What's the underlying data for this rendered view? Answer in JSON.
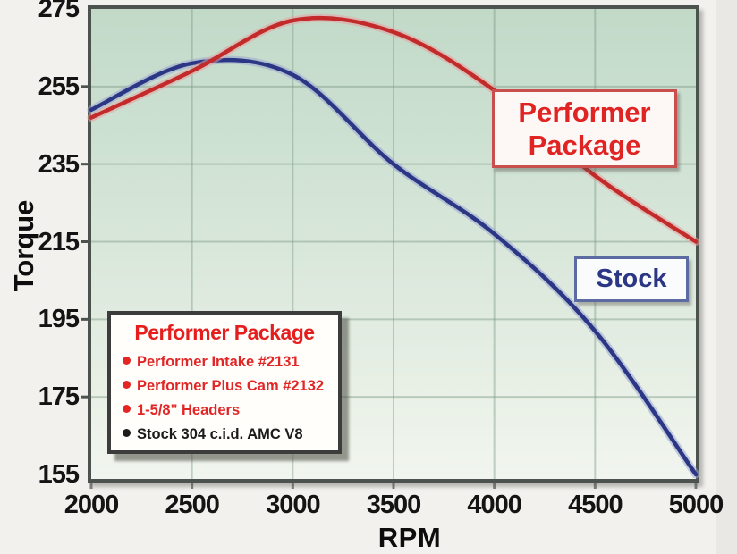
{
  "chart_data": {
    "type": "line",
    "x": [
      2000,
      2500,
      3000,
      3500,
      4000,
      4500,
      5000
    ],
    "series": [
      {
        "name": "Stock",
        "color": "#2b3785",
        "halo": "#9aa6d2",
        "values": [
          249,
          261,
          258,
          235,
          217,
          192,
          155
        ]
      },
      {
        "name": "Performer Package",
        "color": "#c32a2a",
        "halo": "#e5a2a2",
        "values": [
          247,
          259,
          272,
          269,
          254,
          232,
          215
        ]
      }
    ],
    "xlabel": "RPM",
    "ylabel": "Torque",
    "xlim": [
      2000,
      5000
    ],
    "ylim": [
      155,
      275
    ],
    "xticks": [
      2000,
      2500,
      3000,
      3500,
      4000,
      4500,
      5000
    ],
    "yticks": [
      155,
      175,
      195,
      215,
      235,
      255,
      275
    ],
    "grid": true,
    "legend_position": "on-chart boxed labels"
  },
  "annotations": {
    "performer_label": {
      "line1": "Performer",
      "line2": "Package",
      "text_color": "#e02424",
      "border_color": "#c94f4f"
    },
    "stock_label": {
      "text": "Stock",
      "text_color": "#2b3785",
      "border_color": "#5c6ca2"
    }
  },
  "spec_box": {
    "title": "Performer Package",
    "title_color": "#e51d1d",
    "items": [
      {
        "text": "Performer Intake #2131",
        "color": "#e22525"
      },
      {
        "text": "Performer Plus Cam #2132",
        "color": "#e22525"
      },
      {
        "text": "1-5/8\" Headers",
        "color": "#e22525"
      },
      {
        "text": "Stock 304 c.i.d. AMC V8",
        "color": "#1b1b1b"
      }
    ]
  },
  "style": {
    "page_bg": "#f2f1ee",
    "plot_border": "#4c524d",
    "plot_bg_top": "#c2d9c8",
    "plot_bg_bottom": "#f1f5ef",
    "grid_color": "rgba(120,150,128,0.42)",
    "tick_stub_color": "#4c524d",
    "tick_text_color": "#141414"
  }
}
